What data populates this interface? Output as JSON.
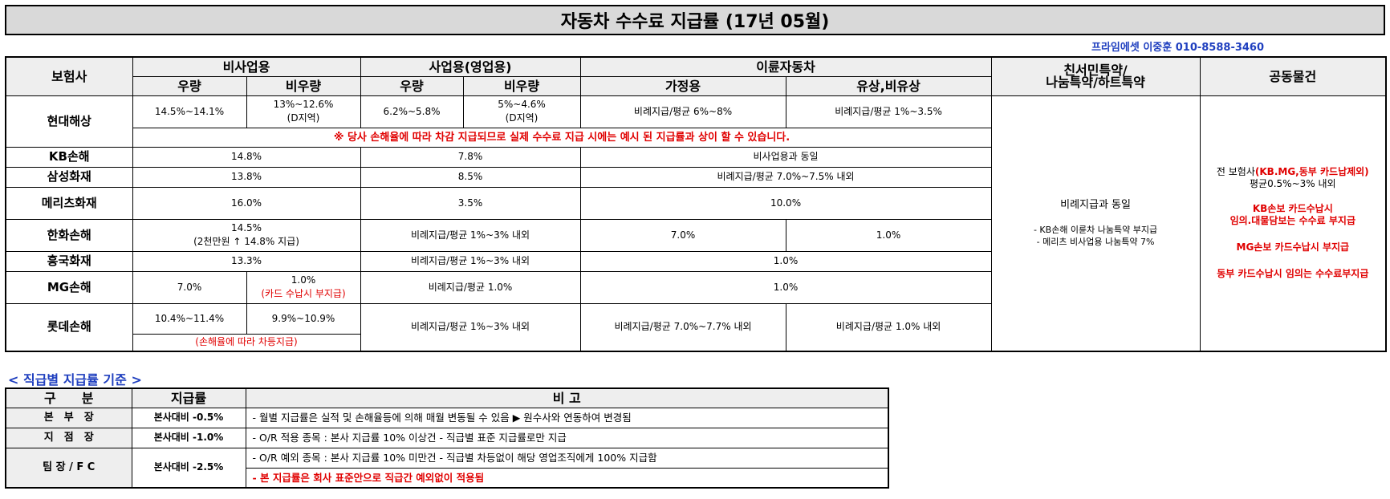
{
  "title": "자동차 수수료 지급률 (17년 05월)",
  "contact": "프라임에셋 이중훈 010-8588-3460",
  "main_table": {
    "headers": {
      "insurer": "보험사",
      "non_business": "비사업용",
      "business": "사업용(영업용)",
      "two_wheel": "이륜자동차",
      "friendly": [
        "친서민특약/",
        "나눔특약/하트특약"
      ],
      "joint": "공동물건",
      "excellent": "우량",
      "non_excellent": "비우량",
      "household": "가정용",
      "paid": "유상,비유상"
    },
    "rows": {
      "hyundai": {
        "name": "현대해상",
        "ne": "14.5%~14.1%",
        "nn": [
          "13%~12.6%",
          "(D지역)"
        ],
        "be": "6.2%~5.8%",
        "bn": [
          "5%~4.6%",
          "(D지역)"
        ],
        "household": "비례지급/평균 6%~8%",
        "paid": "비례지급/평균 1%~3.5%",
        "note": "※ 당사 손해율에 따라 차감 지급되므로 실제 수수료 지급 시에는 예시 된 지급률과 상이 할 수 있습니다."
      },
      "kb": {
        "name": "KB손해",
        "nb": "14.8%",
        "b": "7.8%",
        "tw": "비사업용과 동일"
      },
      "samsung": {
        "name": "삼성화재",
        "nb": "13.8%",
        "b": "8.5%",
        "tw": "비례지급/평균 7.0%~7.5% 내외"
      },
      "meritz": {
        "name": "메리츠화재",
        "nb": "16.0%",
        "b": "3.5%",
        "tw": "10.0%"
      },
      "hanwha": {
        "name": "한화손해",
        "nb": [
          "14.5%",
          "(2천만원 ↑ 14.8% 지급)"
        ],
        "b": "비례지급/평균 1%~3% 내외",
        "household": "7.0%",
        "paid": "1.0%"
      },
      "heungkuk": {
        "name": "흥국화재",
        "nb": "13.3%",
        "b": "비례지급/평균 1%~3% 내외",
        "tw": "1.0%"
      },
      "mg": {
        "name": "MG손해",
        "ne": "7.0%",
        "nn": [
          "1.0%",
          "(카드 수납시 부지급)"
        ],
        "b": "비례지급/평균 1.0%",
        "tw": "1.0%"
      },
      "lotte": {
        "name": "롯데손해",
        "ne": "10.4%~11.4%",
        "nn": "9.9%~10.9%",
        "note": "(손해율에 따라 차등지급)",
        "b": "비례지급/평균 1%~3% 내외",
        "household": "비례지급/평균 7.0%~7.7% 내외",
        "paid": "비례지급/평균 1.0% 내외"
      }
    },
    "friendly": {
      "main": "비례지급과 동일",
      "notes": [
        "- KB손해 이륜차 나눔특약 부지급",
        "- 메리츠 비사업용 나눔특약 7%"
      ]
    },
    "joint": {
      "line1_pre": "전 보험사",
      "line1_red": "(KB.MG,동부 카드납제외)",
      "line2": "평균0.5%~3% 내외",
      "line3": "KB손보 카드수납시",
      "line4": "임의.대물담보는 수수료 부지급",
      "line5": "MG손보 카드수납시 부지급",
      "line6": "동부 카드수납시 임의는 수수료부지급"
    }
  },
  "grade_section": {
    "title": "< 직급별 지급률 기준 >",
    "headers": {
      "cat": "구　　분",
      "rate": "지급률",
      "remark": "비 고"
    },
    "rows": [
      {
        "cat": "본　부　장",
        "rate": "본사대비 -0.5%"
      },
      {
        "cat": "지　점　장",
        "rate": "본사대비 -1.0%"
      },
      {
        "cat": "팀 장 / F C",
        "rate": "본사대비 -2.5%"
      }
    ],
    "notes": [
      "- 월별 지급률은 실적 및 손해율등에 의해 매월 변동될 수 있음 ▶ 원수사와 연동하여 변경됨",
      "- O/R 적용 종목 : 본사 지급률 10% 이상건 - 직급별 표준 지급률로만 지급",
      "- O/R 예외 종목 : 본사 지급률 10% 미만건 - 직급별 차등없이 해당 영업조직에게 100% 지급함",
      "- 본 지급률은 회사 표준안으로 직급간 예외없이 적용됨"
    ]
  },
  "colors": {
    "header_bg": "#eeeeee",
    "title_bg": "#d9d9d9",
    "red": "#e00000",
    "blue": "#1f3fbf"
  }
}
